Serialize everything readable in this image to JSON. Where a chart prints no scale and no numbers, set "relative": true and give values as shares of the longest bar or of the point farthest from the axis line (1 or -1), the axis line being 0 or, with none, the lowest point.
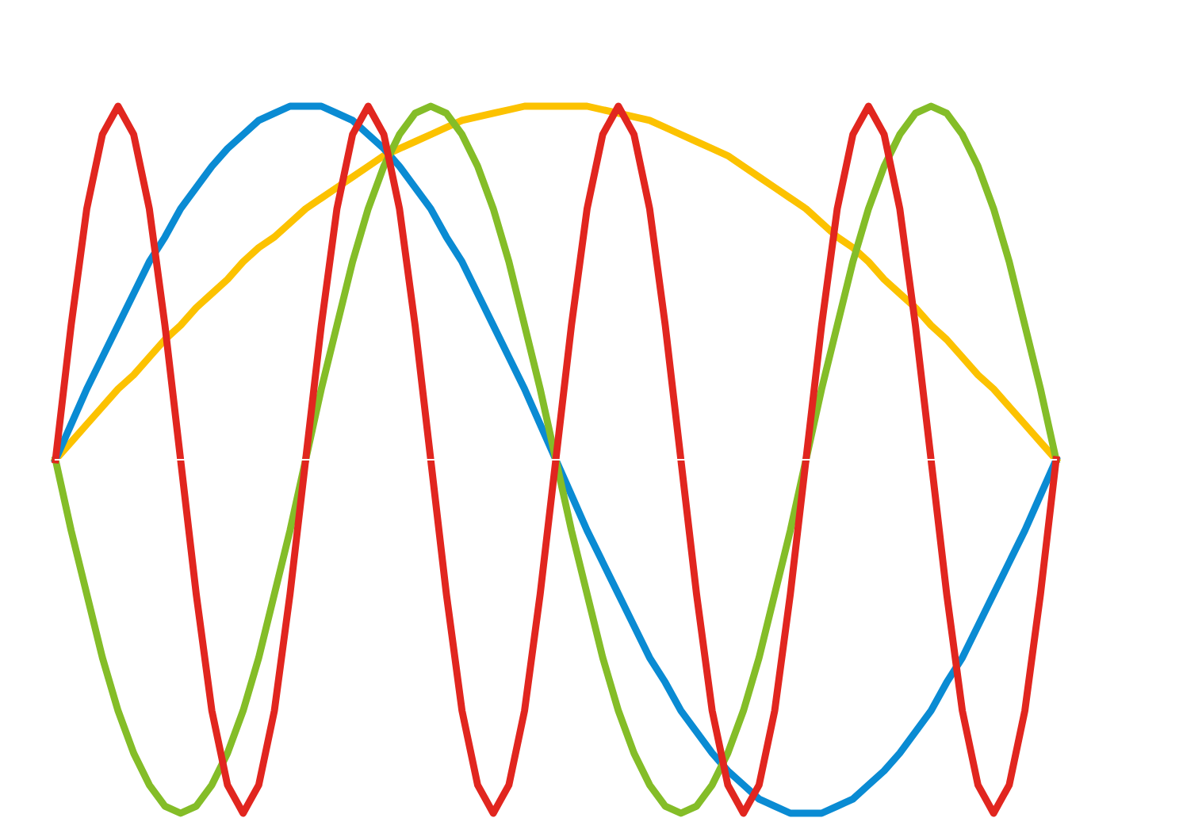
{
  "chart_data": {
    "type": "line",
    "relative": true,
    "categories": [
      null,
      null,
      null,
      null,
      null,
      null,
      null,
      null,
      null,
      null,
      null,
      null,
      null,
      null,
      null,
      null,
      null,
      null,
      null,
      null,
      null,
      null,
      null,
      null,
      null,
      null,
      null,
      null,
      null,
      null,
      null,
      null,
      null,
      null,
      null,
      null,
      null,
      null,
      null,
      null,
      null,
      null,
      null,
      null,
      null,
      null,
      null,
      null,
      null,
      null,
      null,
      null,
      null,
      null,
      null,
      null,
      null,
      null,
      null,
      null,
      null,
      null,
      null,
      null,
      null
    ],
    "series": [
      {
        "color": "#fcc200",
        "values": [
          0,
          0.05,
          0.1,
          0.15,
          0.2,
          0.24,
          0.29,
          0.34,
          0.38,
          0.43,
          0.47,
          0.51,
          0.56,
          0.6,
          0.63,
          0.67,
          0.71,
          0.74,
          0.77,
          0.8,
          0.83,
          0.86,
          0.88,
          0.9,
          0.92,
          0.94,
          0.96,
          0.97,
          0.98,
          0.99,
          1.0,
          1.0,
          1,
          1.0,
          1.0,
          0.99,
          0.98,
          0.97,
          0.96,
          0.94,
          0.92,
          0.9,
          0.88,
          0.86,
          0.83,
          0.8,
          0.77,
          0.74,
          0.71,
          0.67,
          0.63,
          0.6,
          0.56,
          0.51,
          0.47,
          0.43,
          0.38,
          0.34,
          0.29,
          0.24,
          0.2,
          0.15,
          0.1,
          0.05,
          0
        ]
      },
      {
        "color": "#0a8bd3",
        "values": [
          0,
          0.1,
          0.2,
          0.29,
          0.38,
          0.47,
          0.56,
          0.63,
          0.71,
          0.77,
          0.83,
          0.88,
          0.92,
          0.96,
          0.98,
          1.0,
          1,
          1.0,
          0.98,
          0.96,
          0.92,
          0.88,
          0.83,
          0.77,
          0.71,
          0.63,
          0.56,
          0.47,
          0.38,
          0.29,
          0.2,
          0.1,
          0,
          -0.1,
          -0.2,
          -0.29,
          -0.38,
          -0.47,
          -0.56,
          -0.63,
          -0.71,
          -0.77,
          -0.83,
          -0.88,
          -0.92,
          -0.96,
          -0.98,
          -1.0,
          -1,
          -1.0,
          -0.98,
          -0.96,
          -0.92,
          -0.88,
          -0.83,
          -0.77,
          -0.71,
          -0.63,
          -0.56,
          -0.47,
          -0.38,
          -0.29,
          -0.2,
          -0.1,
          0
        ]
      },
      {
        "color": "#84bd28",
        "values": [
          0,
          -0.2,
          -0.38,
          -0.56,
          -0.71,
          -0.83,
          -0.92,
          -0.98,
          -1,
          -0.98,
          -0.92,
          -0.83,
          -0.71,
          -0.56,
          -0.38,
          -0.2,
          0,
          0.2,
          0.38,
          0.56,
          0.71,
          0.83,
          0.92,
          0.98,
          1,
          0.98,
          0.92,
          0.83,
          0.71,
          0.56,
          0.38,
          0.2,
          0,
          -0.2,
          -0.38,
          -0.56,
          -0.71,
          -0.83,
          -0.92,
          -0.98,
          -1,
          -0.98,
          -0.92,
          -0.83,
          -0.71,
          -0.56,
          -0.38,
          -0.2,
          0,
          0.2,
          0.38,
          0.56,
          0.71,
          0.83,
          0.92,
          0.98,
          1,
          0.98,
          0.92,
          0.83,
          0.71,
          0.56,
          0.38,
          0.2,
          0
        ]
      },
      {
        "color": "#e1261f",
        "values": [
          0,
          0.38,
          0.71,
          0.92,
          1,
          0.92,
          0.71,
          0.38,
          0,
          -0.38,
          -0.71,
          -0.92,
          -1,
          -0.92,
          -0.71,
          -0.38,
          0,
          0.38,
          0.71,
          0.92,
          1,
          0.92,
          0.71,
          0.38,
          0,
          -0.38,
          -0.71,
          -0.92,
          -1,
          -0.92,
          -0.71,
          -0.38,
          0,
          0.38,
          0.71,
          0.92,
          1,
          0.92,
          0.71,
          0.38,
          0,
          -0.38,
          -0.71,
          -0.92,
          -1,
          -0.92,
          -0.71,
          -0.38,
          0,
          0.38,
          0.71,
          0.92,
          1,
          0.92,
          0.71,
          0.38,
          0,
          -0.38,
          -0.71,
          -0.92,
          -1,
          -0.92,
          -0.71,
          -0.38,
          0
        ]
      }
    ]
  }
}
